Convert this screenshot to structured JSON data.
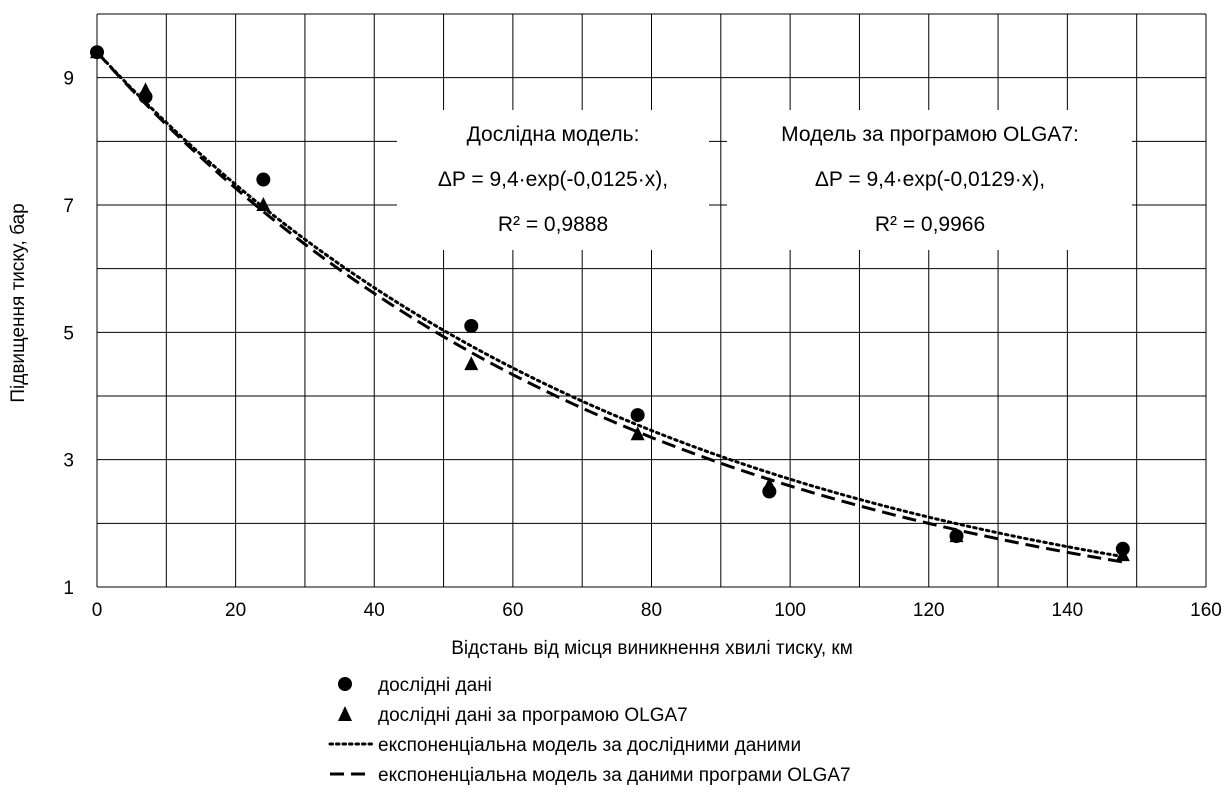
{
  "chart_data": {
    "type": "scatter",
    "xlabel": "Відстань від місця виникнення хвилі тиску, км",
    "ylabel": "Підвищення тиску, бар",
    "xlim": [
      0,
      160
    ],
    "ylim": [
      1,
      10
    ],
    "x_ticks": [
      0,
      20,
      40,
      60,
      80,
      100,
      120,
      140,
      160
    ],
    "x_tick_labels": [
      "0",
      "20",
      "40",
      "60",
      "80",
      "100",
      "120",
      "140",
      "160"
    ],
    "x_grid": [
      0,
      10,
      20,
      30,
      40,
      50,
      60,
      70,
      80,
      90,
      100,
      110,
      120,
      130,
      140,
      150,
      160
    ],
    "y_ticks": [
      1,
      3,
      5,
      7,
      9
    ],
    "y_tick_labels": [
      "1",
      "3",
      "5",
      "7",
      "9"
    ],
    "y_grid": [
      1,
      2,
      3,
      4,
      5,
      6,
      7,
      8,
      9,
      10
    ],
    "grid": true,
    "legend_position": "bottom",
    "series": [
      {
        "name": "дослідні дані",
        "kind": "points",
        "marker": "circle",
        "x": [
          0,
          7,
          24,
          54,
          78,
          97,
          124,
          148
        ],
        "y": [
          9.4,
          8.7,
          7.4,
          5.1,
          3.7,
          2.5,
          1.8,
          1.6
        ]
      },
      {
        "name": "дослідні дані за програмою OLGA7",
        "kind": "points",
        "marker": "triangle",
        "x": [
          0,
          7,
          24,
          54,
          78,
          97,
          124,
          148
        ],
        "y": [
          9.4,
          8.8,
          7.0,
          4.5,
          3.4,
          2.6,
          1.8,
          1.5
        ]
      },
      {
        "name": "експоненціальна модель за дослідними даними",
        "kind": "curve",
        "line_style": "dotted",
        "a": 9.4,
        "b": -0.0125,
        "x_range": [
          0,
          148
        ]
      },
      {
        "name": "експоненціальна модель за даними програми OLGA7",
        "kind": "curve",
        "line_style": "dashed",
        "a": 9.4,
        "b": -0.0129,
        "x_range": [
          0,
          148
        ]
      }
    ],
    "annotations": [
      {
        "lines": [
          "Дослідна модель:",
          "ΔP = 9,4·exp(-0,0125·x),",
          "R² = 0,9888"
        ]
      },
      {
        "lines": [
          "Модель за програмою OLGA7:",
          "ΔP = 9,4·exp(-0,0129·x),",
          "R² = 0,9966"
        ]
      }
    ]
  }
}
